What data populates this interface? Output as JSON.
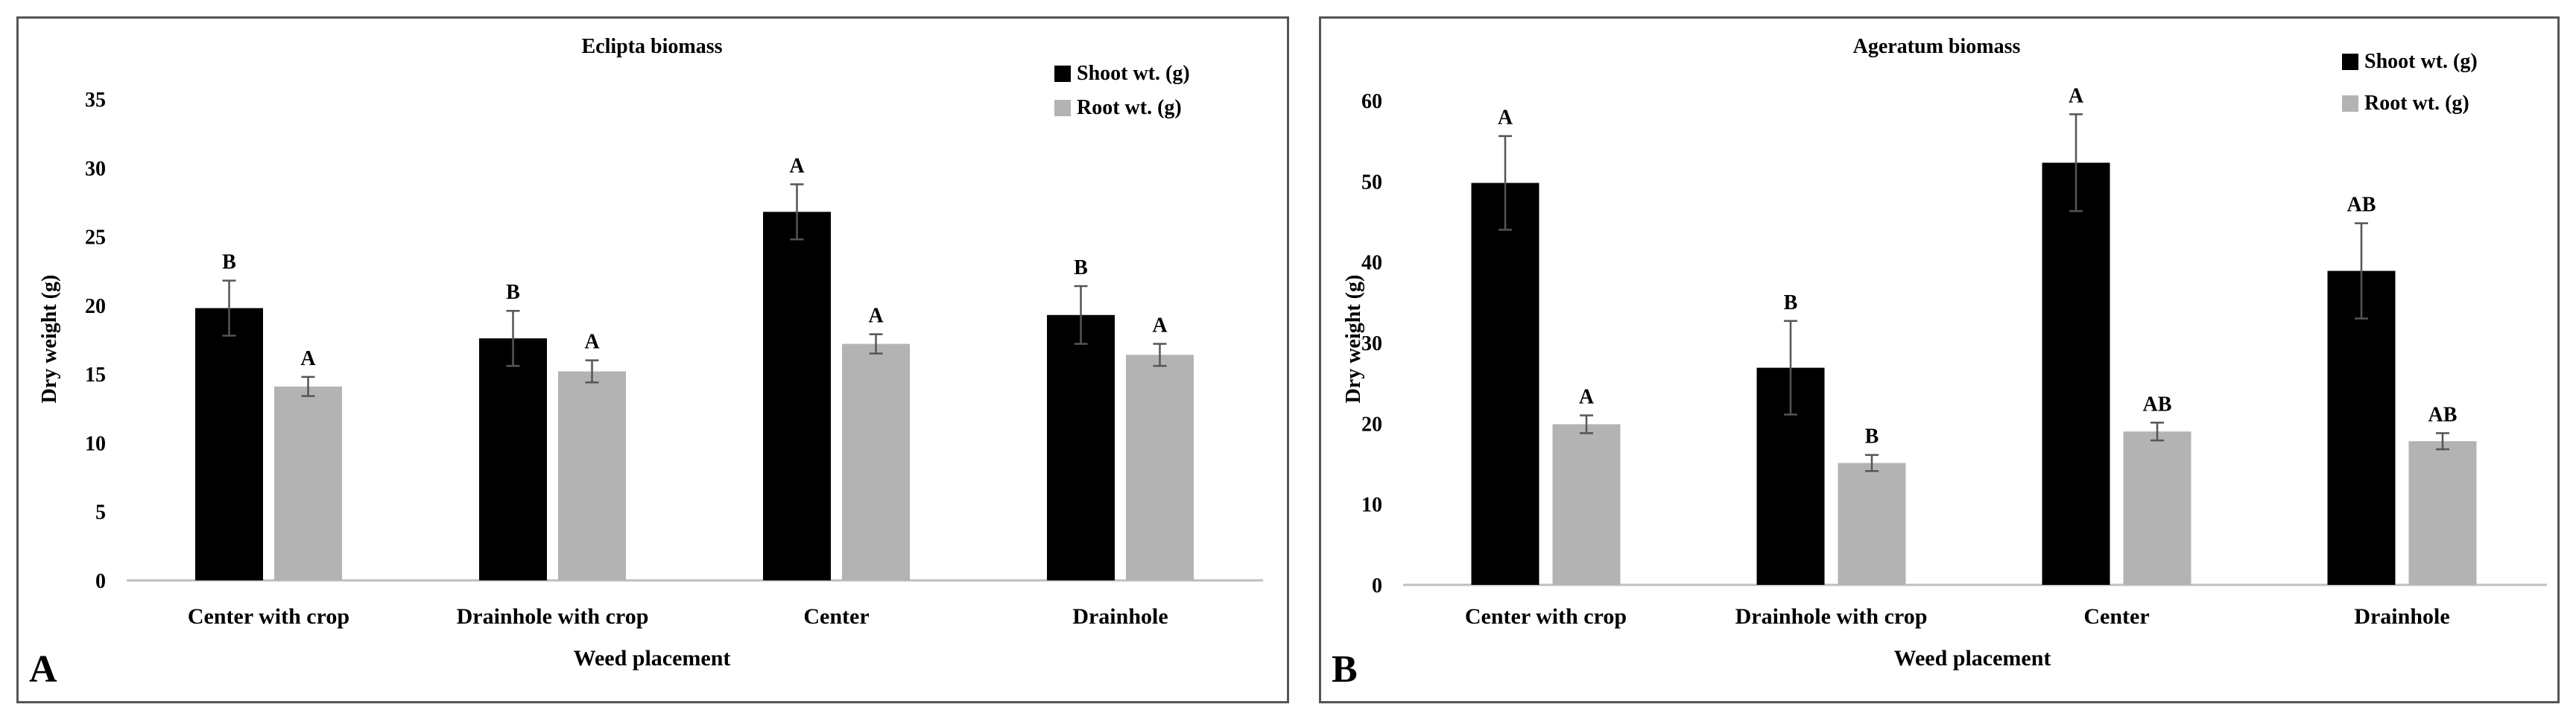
{
  "colors": {
    "shoot": "#000000",
    "root": "#b3b3b3",
    "axis": "#bfbfbf",
    "error": "#555555"
  },
  "chart_data": [
    {
      "type": "bar",
      "panel_label": "A",
      "title": "Eclipta biomass",
      "xlabel": "Weed placement",
      "ylabel": "Dry weight (g)",
      "ylim": [
        0,
        35
      ],
      "yticks": [
        0,
        5,
        10,
        15,
        20,
        25,
        30,
        35
      ],
      "categories": [
        "Center with crop",
        "Drainhole with crop",
        "Center",
        "Drainhole"
      ],
      "series": [
        {
          "name": "Shoot wt. (g)",
          "color": "#000000",
          "values": [
            19.8,
            17.6,
            26.8,
            19.3
          ],
          "errors": [
            2.0,
            2.0,
            2.0,
            2.1
          ],
          "letters": [
            "B",
            "B",
            "A",
            "B"
          ]
        },
        {
          "name": "Root wt. (g)",
          "color": "#b3b3b3",
          "values": [
            14.1,
            15.2,
            17.2,
            16.4
          ],
          "errors": [
            0.7,
            0.8,
            0.7,
            0.8
          ],
          "letters": [
            "A",
            "A",
            "A",
            "A"
          ]
        }
      ],
      "legend_position": "top-right"
    },
    {
      "type": "bar",
      "panel_label": "B",
      "title": "Ageratum biomass",
      "xlabel": "Weed placement",
      "ylabel": "Dry weight (g)",
      "ylim": [
        0,
        60
      ],
      "yticks": [
        0,
        10,
        20,
        30,
        40,
        50,
        60
      ],
      "categories": [
        "Center with crop",
        "Drainhole with crop",
        "Center",
        "Drainhole"
      ],
      "series": [
        {
          "name": "Shoot wt. (g)",
          "color": "#000000",
          "values": [
            49.8,
            26.9,
            52.3,
            38.9
          ],
          "errors": [
            5.8,
            5.8,
            6.0,
            5.9
          ],
          "letters": [
            "A",
            "B",
            "A",
            "AB"
          ]
        },
        {
          "name": "Root wt. (g)",
          "color": "#b3b3b3",
          "values": [
            19.9,
            15.1,
            19.0,
            17.8
          ],
          "errors": [
            1.1,
            1.0,
            1.1,
            1.0
          ],
          "letters": [
            "A",
            "B",
            "AB",
            "AB"
          ]
        }
      ],
      "legend_position": "top-right"
    }
  ]
}
